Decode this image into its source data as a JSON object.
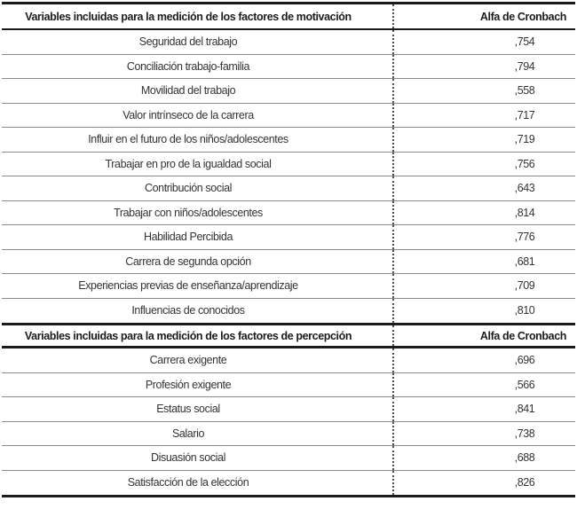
{
  "table": {
    "sections": [
      {
        "header": {
          "variables": "Variables incluidas para la medición de los factores de motivación",
          "alpha": "Alfa de Cronbach"
        },
        "rows": [
          {
            "variable": "Seguridad del trabajo",
            "alpha": ",754"
          },
          {
            "variable": "Conciliación trabajo-familia",
            "alpha": ",794"
          },
          {
            "variable": "Movilidad del trabajo",
            "alpha": ",558"
          },
          {
            "variable": "Valor intrínseco de la carrera",
            "alpha": ",717"
          },
          {
            "variable": "Influir en el futuro de los niños/adolescentes",
            "alpha": ",719"
          },
          {
            "variable": "Trabajar en pro de la igualdad social",
            "alpha": ",756"
          },
          {
            "variable": "Contribución social",
            "alpha": ",643"
          },
          {
            "variable": "Trabajar con niños/adolescentes",
            "alpha": ",814"
          },
          {
            "variable": "Habilidad Percibida",
            "alpha": ",776"
          },
          {
            "variable": "Carrera de segunda opción",
            "alpha": ",681"
          },
          {
            "variable": "Experiencias previas de enseñanza/aprendizaje",
            "alpha": ",709"
          },
          {
            "variable": "Influencias de conocidos",
            "alpha": ",810"
          }
        ]
      },
      {
        "header": {
          "variables": "Variables incluidas para la medición de los factores de percepción",
          "alpha": "Alfa de Cronbach"
        },
        "rows": [
          {
            "variable": "Carrera exigente",
            "alpha": ",696"
          },
          {
            "variable": "Profesión exigente",
            "alpha": ",566"
          },
          {
            "variable": "Estatus social",
            "alpha": ",841"
          },
          {
            "variable": "Salario",
            "alpha": ",738"
          },
          {
            "variable": "Disuasión social",
            "alpha": ",688"
          },
          {
            "variable": "Satisfacción de la elección",
            "alpha": ",826"
          }
        ]
      }
    ]
  }
}
